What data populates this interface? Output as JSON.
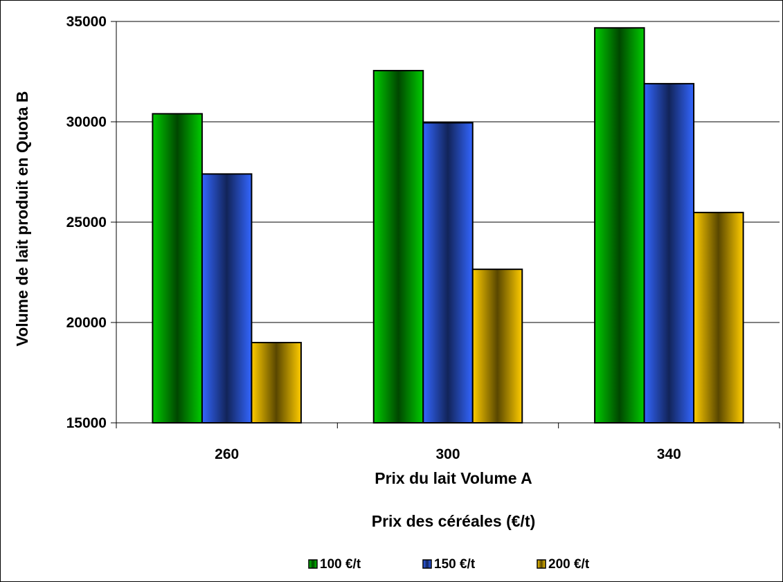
{
  "chart_data": {
    "type": "bar",
    "categories": [
      "260",
      "300",
      "340"
    ],
    "series": [
      {
        "name": "100 €/t",
        "values": [
          30400,
          32550,
          34680
        ],
        "color": "#00CC00"
      },
      {
        "name": "150 €/t",
        "values": [
          27400,
          29950,
          31900
        ],
        "color": "#3366FF"
      },
      {
        "name": "200 €/t",
        "values": [
          19000,
          22650,
          25480
        ],
        "color": "#FFCC00"
      }
    ],
    "xlabel": "Prix du lait Volume A",
    "ylabel": "Volume de lait produit en Quota B",
    "legend_title": "Prix des céréales (€/t)",
    "ylim": [
      15000,
      35000
    ],
    "yticks": [
      15000,
      20000,
      25000,
      30000,
      35000
    ],
    "grid": true,
    "legend_position": "bottom"
  }
}
